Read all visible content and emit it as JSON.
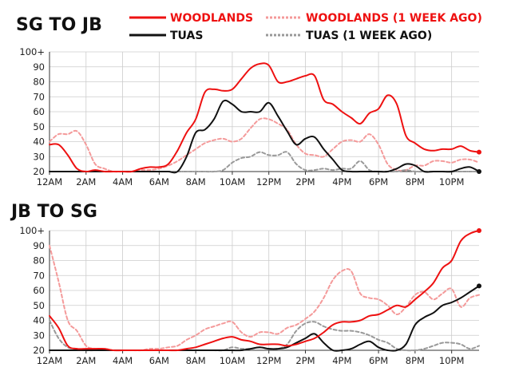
{
  "chart_data": [
    {
      "type": "line",
      "title": "SG TO JB",
      "x": [
        0,
        0.5,
        1,
        1.5,
        2,
        2.5,
        3,
        3.5,
        4,
        4.5,
        5,
        5.5,
        6,
        6.5,
        7,
        7.5,
        8,
        8.5,
        9,
        9.5,
        10,
        10.5,
        11,
        11.5,
        12,
        12.5,
        13,
        13.5,
        14,
        14.5,
        15,
        15.5,
        16,
        16.5,
        17,
        17.5,
        18,
        18.5,
        19,
        19.5,
        20,
        20.5,
        21,
        21.5,
        22,
        22.5,
        23,
        23.5
      ],
      "x_tick_labels": [
        "12AM",
        "2AM",
        "4AM",
        "6AM",
        "8AM",
        "10AM",
        "12PM",
        "2PM",
        "4PM",
        "6PM",
        "8PM",
        "10PM"
      ],
      "y_tick_labels": [
        "20",
        "30",
        "40",
        "50",
        "60",
        "70",
        "80",
        "90",
        "100+"
      ],
      "ylim": [
        20,
        100
      ],
      "grid": true,
      "legend_position": "top-right",
      "series": [
        {
          "name": "WOODLANDS",
          "color": "#ee1111",
          "dashed": false,
          "end_marker": true,
          "values": [
            38,
            38,
            31,
            22,
            20,
            21,
            20,
            20,
            20,
            20,
            22,
            23,
            23,
            25,
            34,
            46,
            55,
            73,
            75,
            74,
            75,
            82,
            89,
            92,
            91,
            80,
            80,
            82,
            84,
            84,
            68,
            65,
            60,
            56,
            52,
            59,
            62,
            71,
            65,
            44,
            39,
            35,
            34,
            35,
            35,
            37,
            34,
            33
          ]
        },
        {
          "name": "TUAS",
          "color": "#111111",
          "dashed": false,
          "end_marker": true,
          "values": [
            20,
            20,
            20,
            20,
            20,
            20,
            20,
            20,
            20,
            20,
            20,
            20,
            20,
            20,
            20,
            30,
            46,
            48,
            55,
            67,
            65,
            60,
            60,
            60,
            66,
            57,
            47,
            38,
            42,
            43,
            35,
            28,
            21,
            20,
            20,
            20,
            20,
            20,
            22,
            25,
            24,
            20,
            20,
            20,
            20,
            22,
            23,
            20
          ]
        },
        {
          "name": "WOODLANDS (1 WEEK AGO)",
          "color": "#f49a9a",
          "dashed": true,
          "end_marker": false,
          "values": [
            40,
            45,
            45,
            47,
            38,
            25,
            22,
            20,
            20,
            20,
            21,
            21,
            22,
            24,
            27,
            31,
            35,
            39,
            41,
            42,
            40,
            42,
            49,
            55,
            55,
            52,
            48,
            38,
            32,
            31,
            30,
            35,
            40,
            41,
            40,
            45,
            38,
            25,
            21,
            21,
            24,
            24,
            27,
            27,
            26,
            28,
            28,
            26
          ]
        },
        {
          "name": "TUAS (1 WEEK AGO)",
          "color": "#999999",
          "dashed": true,
          "end_marker": false,
          "values": [
            20,
            20,
            20,
            20,
            20,
            20,
            20,
            20,
            20,
            20,
            20,
            20,
            20,
            20,
            20,
            20,
            20,
            20,
            20,
            21,
            26,
            29,
            30,
            33,
            31,
            31,
            33,
            25,
            21,
            21,
            22,
            21,
            22,
            22,
            27,
            21,
            20,
            20,
            20,
            21,
            20,
            20,
            20,
            20,
            20,
            20,
            20,
            20
          ]
        }
      ]
    },
    {
      "type": "line",
      "title": "JB TO SG",
      "x": [
        0,
        0.5,
        1,
        1.5,
        2,
        2.5,
        3,
        3.5,
        4,
        4.5,
        5,
        5.5,
        6,
        6.5,
        7,
        7.5,
        8,
        8.5,
        9,
        9.5,
        10,
        10.5,
        11,
        11.5,
        12,
        12.5,
        13,
        13.5,
        14,
        14.5,
        15,
        15.5,
        16,
        16.5,
        17,
        17.5,
        18,
        18.5,
        19,
        19.5,
        20,
        20.5,
        21,
        21.5,
        22,
        22.5,
        23,
        23.5
      ],
      "x_tick_labels": [
        "12AM",
        "2AM",
        "4AM",
        "6AM",
        "8AM",
        "10AM",
        "12PM",
        "2PM",
        "4PM",
        "6PM",
        "8PM",
        "10PM"
      ],
      "y_tick_labels": [
        "20",
        "30",
        "40",
        "50",
        "60",
        "70",
        "80",
        "90",
        "100+"
      ],
      "ylim": [
        20,
        100
      ],
      "grid": true,
      "series": [
        {
          "name": "WOODLANDS",
          "color": "#ee1111",
          "dashed": false,
          "end_marker": true,
          "values": [
            43,
            35,
            23,
            21,
            21,
            21,
            21,
            20,
            20,
            20,
            20,
            20,
            20,
            20,
            20,
            21,
            22,
            24,
            26,
            28,
            29,
            27,
            26,
            24,
            24,
            24,
            23,
            24,
            26,
            28,
            32,
            37,
            39,
            39,
            40,
            43,
            44,
            47,
            50,
            49,
            54,
            59,
            65,
            75,
            80,
            93,
            98,
            100
          ]
        },
        {
          "name": "TUAS",
          "color": "#111111",
          "dashed": false,
          "end_marker": true,
          "values": [
            20,
            20,
            20,
            20,
            20,
            20,
            20,
            20,
            20,
            20,
            20,
            20,
            20,
            20,
            20,
            20,
            20,
            20,
            20,
            20,
            20,
            20,
            21,
            22,
            21,
            21,
            22,
            25,
            28,
            31,
            25,
            20,
            20,
            21,
            24,
            26,
            22,
            20,
            20,
            24,
            37,
            42,
            45,
            50,
            52,
            55,
            59,
            63
          ]
        },
        {
          "name": "WOODLANDS (1 WEEK AGO)",
          "color": "#f49a9a",
          "dashed": true,
          "end_marker": false,
          "values": [
            90,
            66,
            40,
            33,
            23,
            21,
            21,
            20,
            20,
            20,
            20,
            21,
            21,
            22,
            23,
            27,
            30,
            34,
            36,
            38,
            39,
            32,
            29,
            32,
            32,
            31,
            35,
            37,
            41,
            46,
            55,
            67,
            73,
            73,
            58,
            55,
            54,
            50,
            44,
            49,
            57,
            59,
            54,
            58,
            61,
            49,
            55,
            57
          ]
        },
        {
          "name": "TUAS (1 WEEK AGO)",
          "color": "#999999",
          "dashed": true,
          "end_marker": false,
          "values": [
            40,
            28,
            22,
            21,
            20,
            20,
            20,
            20,
            20,
            20,
            20,
            20,
            20,
            20,
            20,
            20,
            20,
            20,
            20,
            20,
            22,
            21,
            21,
            22,
            21,
            21,
            24,
            33,
            38,
            39,
            36,
            34,
            33,
            33,
            32,
            30,
            27,
            25,
            21,
            20,
            20,
            21,
            23,
            25,
            25,
            24,
            21,
            23
          ]
        }
      ]
    }
  ]
}
